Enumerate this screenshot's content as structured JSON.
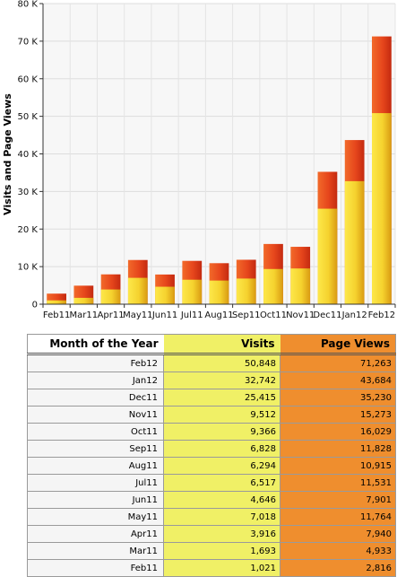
{
  "chart_data": {
    "type": "bar",
    "stacked": "overlay",
    "categories": [
      "Feb11",
      "Mar11",
      "Apr11",
      "May11",
      "Jun11",
      "Jul11",
      "Aug11",
      "Sep11",
      "Oct11",
      "Nov11",
      "Dec11",
      "Jan12",
      "Feb12"
    ],
    "series": [
      {
        "name": "Visits",
        "values": [
          1021,
          1693,
          3916,
          7018,
          4646,
          6517,
          6294,
          6828,
          9366,
          9512,
          25415,
          32742,
          50848
        ],
        "color": "#f2d02a"
      },
      {
        "name": "Page Views",
        "values": [
          2816,
          4933,
          7940,
          11764,
          7901,
          11531,
          10915,
          11828,
          16029,
          15273,
          35230,
          43684,
          71263
        ],
        "color": "#e54c1e"
      }
    ],
    "ylabel": "Visits and Page Views",
    "ylim": [
      0,
      80000
    ],
    "yticks": [
      0,
      10000,
      20000,
      30000,
      40000,
      50000,
      60000,
      70000,
      80000
    ],
    "ytick_labels": [
      "0",
      "10 K",
      "20 K",
      "30 K",
      "40 K",
      "50 K",
      "60 K",
      "70 K",
      "80 K"
    ],
    "grid": true,
    "legend": "none"
  },
  "table": {
    "headers": [
      "Month of the Year",
      "Visits",
      "Page Views"
    ],
    "rows": [
      [
        "Feb12",
        "50,848",
        "71,263"
      ],
      [
        "Jan12",
        "32,742",
        "43,684"
      ],
      [
        "Dec11",
        "25,415",
        "35,230"
      ],
      [
        "Nov11",
        "9,512",
        "15,273"
      ],
      [
        "Oct11",
        "9,366",
        "16,029"
      ],
      [
        "Sep11",
        "6,828",
        "11,828"
      ],
      [
        "Aug11",
        "6,294",
        "10,915"
      ],
      [
        "Jul11",
        "6,517",
        "11,531"
      ],
      [
        "Jun11",
        "4,646",
        "7,901"
      ],
      [
        "May11",
        "7,018",
        "11,764"
      ],
      [
        "Apr11",
        "3,916",
        "7,940"
      ],
      [
        "Mar11",
        "1,693",
        "4,933"
      ],
      [
        "Feb11",
        "1,021",
        "2,816"
      ]
    ]
  }
}
